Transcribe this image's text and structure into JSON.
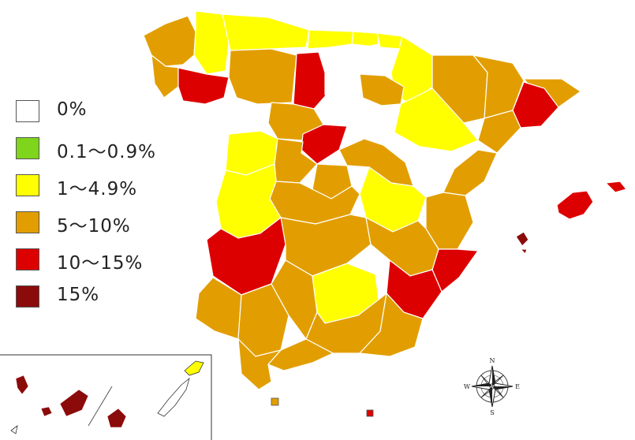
{
  "colors": {
    "none": "#ffffff",
    "low": "#7fd41c",
    "yellow": "#ffff00",
    "orange": "#e29e00",
    "red": "#dd0000",
    "darkred": "#8b0b0b"
  },
  "legend": [
    {
      "label": "0%",
      "color": "#ffffff"
    },
    {
      "label": "0.1～0.9%",
      "color": "#7fd41c"
    },
    {
      "label": "1～4.9%",
      "color": "#ffff00"
    },
    {
      "label": "5～10%",
      "color": "#e29e00"
    },
    {
      "label": "10～15%",
      "color": "#dd0000"
    },
    {
      "label": "15%",
      "color": "#8b0b0b"
    }
  ],
  "compass": {
    "n": "N",
    "e": "E",
    "s": "S",
    "w": "W"
  }
}
